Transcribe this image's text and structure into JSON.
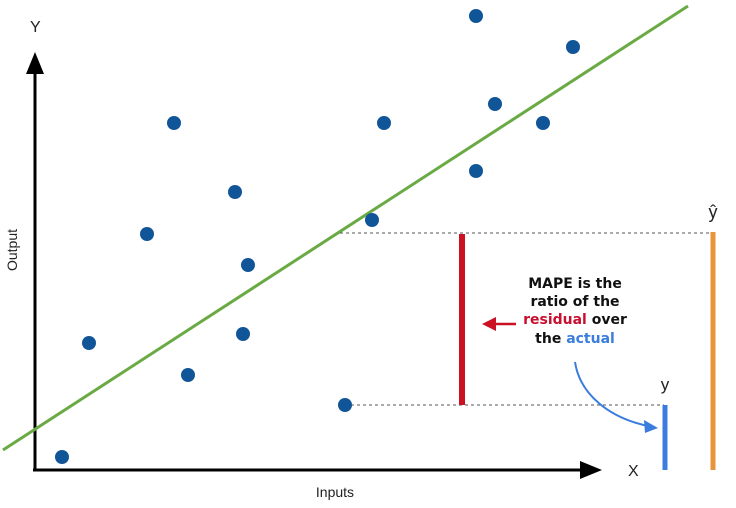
{
  "axes": {
    "y_label": "Y",
    "x_label": "X",
    "y_title": "Output",
    "x_title": "Inputs",
    "color": "#000000"
  },
  "annotation": {
    "line1": "MAPE is the",
    "line2": "ratio of the",
    "residual_word": "residual",
    "over_word": " over",
    "the_word": "the ",
    "actual_word": "actual",
    "residual_color": "#c8102e",
    "actual_color": "#3b7ddd"
  },
  "markers": {
    "y_label": "y",
    "yhat_label": "ŷ",
    "residual_color": "#cc1122",
    "actual_color": "#3b7ddd",
    "predicted_color": "#e8943a"
  },
  "regression_line_color": "#6aaa44",
  "point_color": "#115599"
}
